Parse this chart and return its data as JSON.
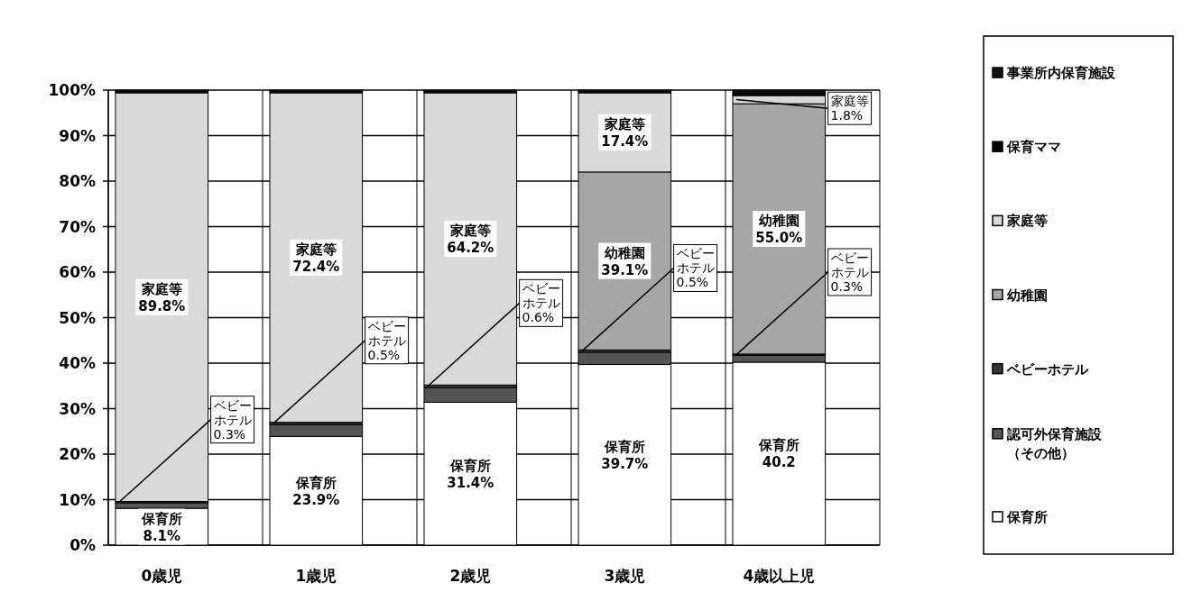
{
  "chart_data": {
    "type": "bar",
    "stacked": true,
    "categories": [
      "0歳児",
      "1歳児",
      "2歳児",
      "3歳児",
      "4歳以上児"
    ],
    "series": [
      {
        "name": "保育所",
        "color": "#ffffff",
        "values": [
          8.1,
          23.9,
          31.4,
          39.7,
          40.2
        ],
        "value_labels": [
          "8.1%",
          "23.9%",
          "31.4%",
          "39.7%",
          "40.2"
        ]
      },
      {
        "name": "認可外保育施設（その他）",
        "color": "#555555",
        "values": [
          1.2,
          2.6,
          3.2,
          2.7,
          1.5
        ]
      },
      {
        "name": "ベビーホテル",
        "color": "#333333",
        "values": [
          0.3,
          0.5,
          0.6,
          0.5,
          0.3
        ],
        "value_labels": [
          "0.3%",
          "0.5%",
          "0.6%",
          "0.5%",
          "0.3%"
        ]
      },
      {
        "name": "幼稚園",
        "color": "#a6a6a6",
        "values": [
          0,
          0,
          0,
          39.1,
          55.0
        ],
        "value_labels": [
          null,
          null,
          null,
          "39.1%",
          "55.0%"
        ]
      },
      {
        "name": "家庭等",
        "color": "#d9d9d9",
        "values": [
          89.8,
          72.4,
          64.2,
          17.4,
          1.8
        ],
        "value_labels": [
          "89.8%",
          "72.4%",
          "64.2%",
          "17.4%",
          "1.8%"
        ]
      },
      {
        "name": "保育ママ",
        "color": "#000000",
        "values": [
          0.3,
          0.3,
          0.3,
          0.3,
          0.6
        ]
      },
      {
        "name": "事業所内保育施設",
        "color": "#111111",
        "values": [
          0.3,
          0.3,
          0.3,
          0.3,
          0.6
        ]
      }
    ],
    "ylim": [
      0,
      100
    ],
    "yticks": [
      {
        "value": 0,
        "label": "0%"
      },
      {
        "value": 10,
        "label": "10%"
      },
      {
        "value": 20,
        "label": "20%"
      },
      {
        "value": 30,
        "label": "30%"
      },
      {
        "value": 40,
        "label": "40%"
      },
      {
        "value": 50,
        "label": "50%"
      },
      {
        "value": 60,
        "label": "60%"
      },
      {
        "value": 70,
        "label": "70%"
      },
      {
        "value": 80,
        "label": "80%"
      },
      {
        "value": 90,
        "label": "90%"
      },
      {
        "value": 100,
        "label": "100%"
      }
    ],
    "grid": "y",
    "legend": "right"
  }
}
